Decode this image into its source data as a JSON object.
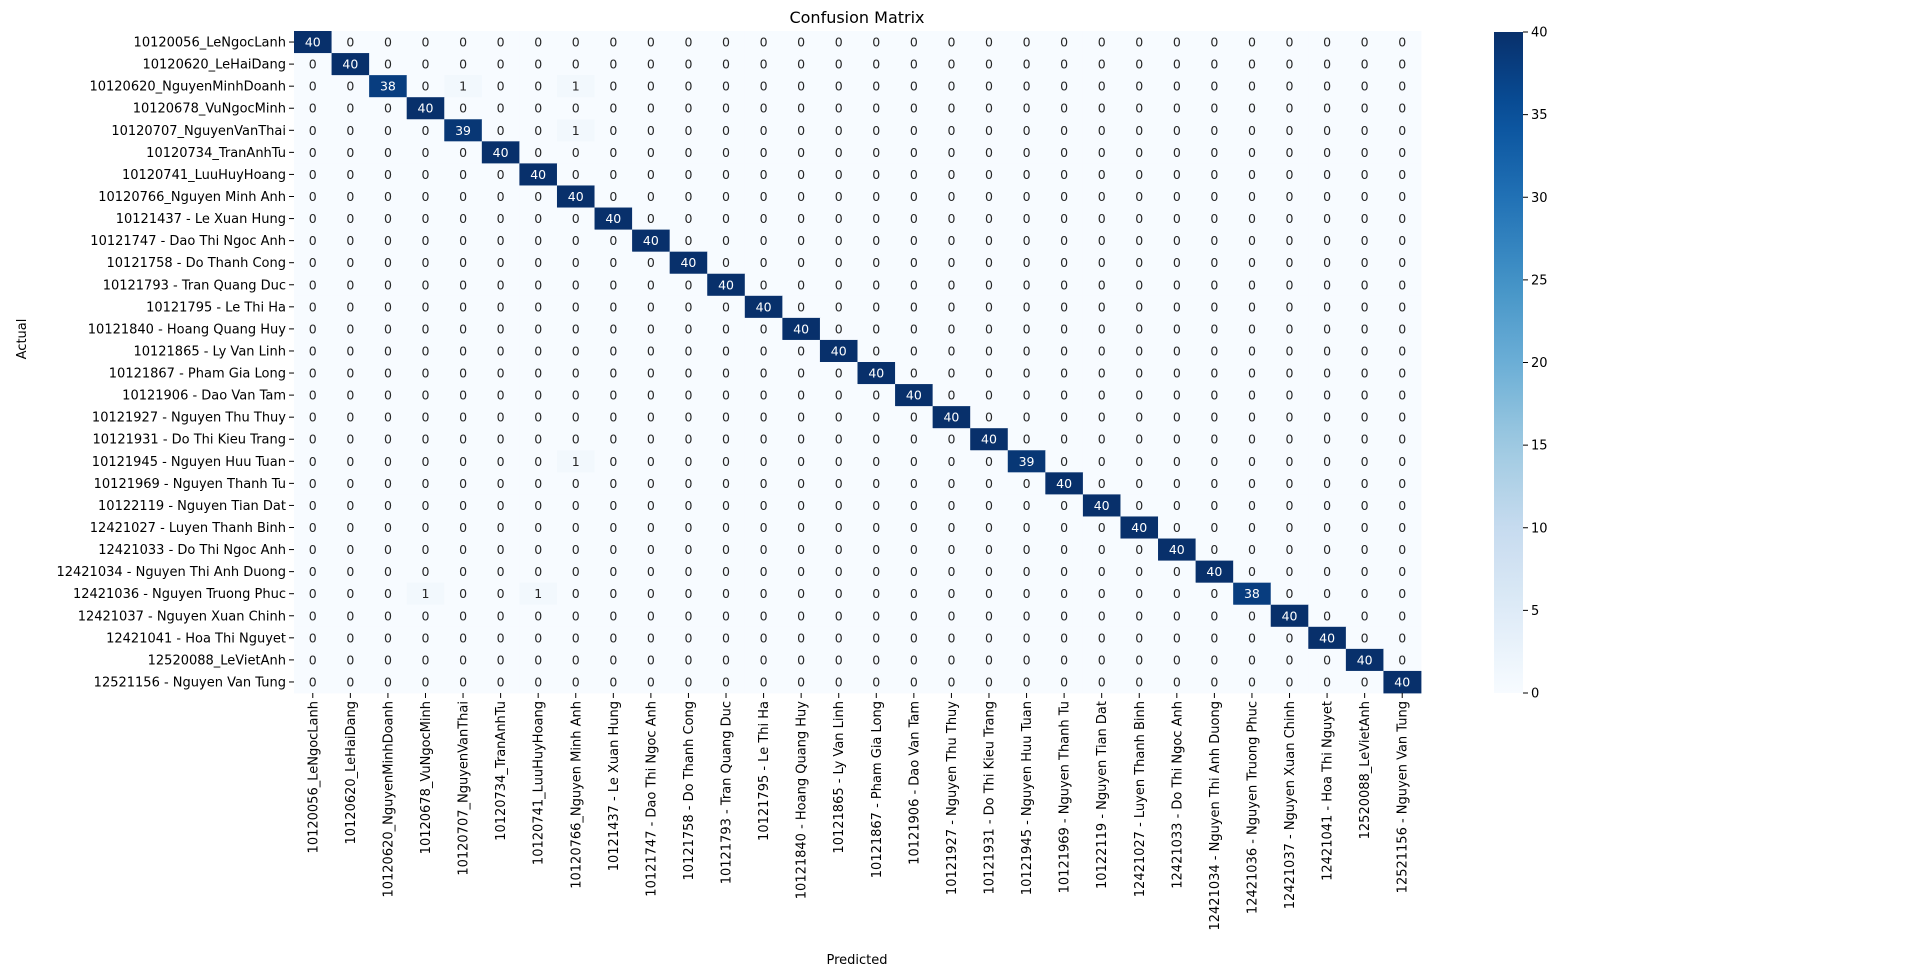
{
  "chart_data": {
    "type": "heatmap",
    "title": "Confusion Matrix",
    "xlabel": "Predicted",
    "ylabel": "Actual",
    "labels": [
      "10120056_LeNgocLanh",
      "10120620_LeHaiDang",
      "10120620_NguyenMinhDoanh",
      "10120678_VuNgocMinh",
      "10120707_NguyenVanThai",
      "10120734_TranAnhTu",
      "10120741_LuuHuyHoang",
      "10120766_Nguyen Minh Anh",
      "10121437 - Le Xuan Hung",
      "10121747 - Dao Thi Ngoc Anh",
      "10121758 - Do Thanh Cong",
      "10121793 - Tran Quang Duc",
      "10121795 - Le Thi Ha",
      "10121840 - Hoang Quang Huy",
      "10121865 - Ly Van Linh",
      "10121867 - Pham Gia Long",
      "10121906 - Dao Van Tam",
      "10121927 - Nguyen Thu Thuy",
      "10121931 - Do Thi Kieu Trang",
      "10121945 - Nguyen Huu Tuan",
      "10121969 - Nguyen Thanh Tu",
      "10122119 - Nguyen Tian Dat",
      "12421027 - Luyen Thanh Binh",
      "12421033 - Do Thi Ngoc Anh",
      "12421034 - Nguyen Thi Anh Duong",
      "12421036 - Nguyen Truong Phuc",
      "12421037 - Nguyen Xuan Chinh",
      "12421041 - Hoa Thi Nguyet",
      "12520088_LeVietAnh",
      "12521156 - Nguyen Van Tung"
    ],
    "diagonal": [
      40,
      40,
      38,
      40,
      39,
      40,
      40,
      40,
      40,
      40,
      40,
      40,
      40,
      40,
      40,
      40,
      40,
      40,
      40,
      39,
      40,
      40,
      40,
      40,
      40,
      38,
      40,
      40,
      40,
      40
    ],
    "off_diagonal": [
      {
        "actual": 2,
        "predicted": 4,
        "value": 1
      },
      {
        "actual": 2,
        "predicted": 7,
        "value": 1
      },
      {
        "actual": 4,
        "predicted": 7,
        "value": 1
      },
      {
        "actual": 19,
        "predicted": 7,
        "value": 1
      },
      {
        "actual": 25,
        "predicted": 3,
        "value": 1
      },
      {
        "actual": 25,
        "predicted": 6,
        "value": 1
      }
    ],
    "colorbar": {
      "min": 0,
      "max": 40,
      "ticks": [
        0,
        5,
        10,
        15,
        20,
        25,
        30,
        35,
        40
      ],
      "colormap": "Blues",
      "low_color": "#f7fbff",
      "high_color": "#08306b"
    }
  }
}
